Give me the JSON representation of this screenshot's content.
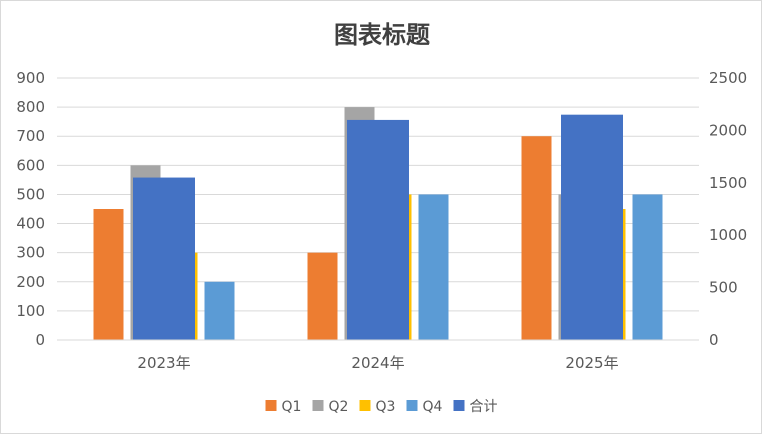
{
  "chart_data": {
    "type": "bar",
    "title": "图表标题",
    "categories": [
      "2023年",
      "2024年",
      "2025年"
    ],
    "series": [
      {
        "name": "Q1",
        "axis": "left",
        "color": "#ED7D31",
        "values": [
          450,
          300,
          700
        ]
      },
      {
        "name": "Q2",
        "axis": "left",
        "color": "#A5A5A5",
        "values": [
          600,
          800,
          500
        ]
      },
      {
        "name": "Q3",
        "axis": "left",
        "color": "#FFC000",
        "values": [
          300,
          500,
          450
        ]
      },
      {
        "name": "Q4",
        "axis": "left",
        "color": "#5B9BD5",
        "values": [
          200,
          500,
          500
        ]
      },
      {
        "name": "合计",
        "axis": "right",
        "color": "#4472C4",
        "values": [
          1550,
          2100,
          2150
        ]
      }
    ],
    "ylim_left": [
      0,
      900
    ],
    "ylim_right": [
      0,
      2500
    ],
    "yticks_left": [
      "0",
      "100",
      "200",
      "300",
      "400",
      "500",
      "600",
      "700",
      "800",
      "900"
    ],
    "yticks_right": [
      "0",
      "500",
      "1000",
      "1500",
      "2000",
      "2500"
    ],
    "grid": true,
    "legend_position": "bottom",
    "xlabel": "",
    "ylabel": ""
  }
}
